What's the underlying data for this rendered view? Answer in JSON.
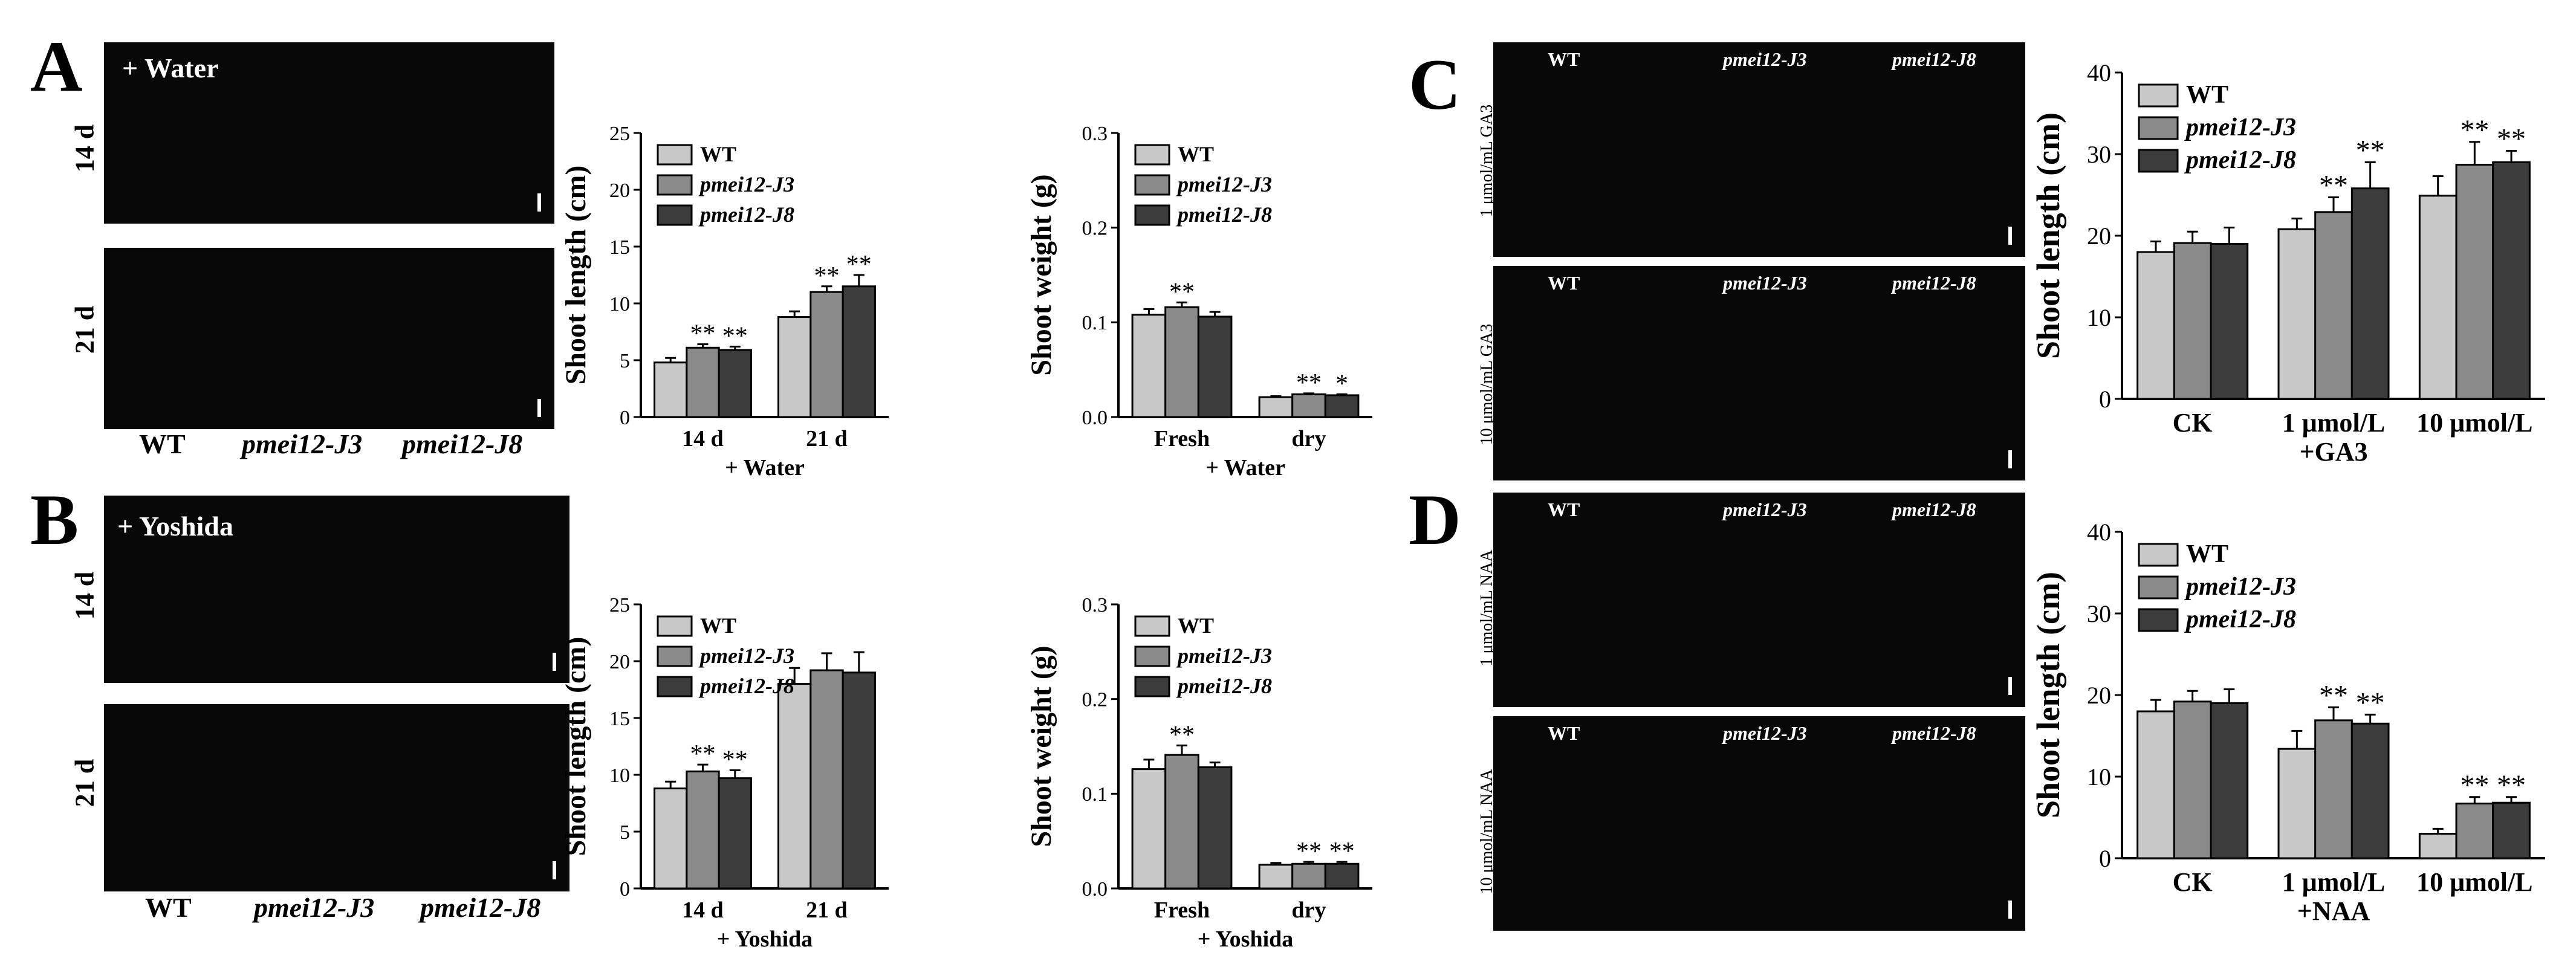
{
  "figure": {
    "labels": {
      "A": "A",
      "B": "B",
      "C": "C",
      "D": "D"
    },
    "photo_tags": {
      "water": "+ Water",
      "yoshida": "+ Yoshida"
    },
    "row_labels": {
      "d14": "14 d",
      "d21": "21 d"
    },
    "genotypes": [
      "WT",
      "pmei12-J3",
      "pmei12-J8"
    ],
    "ga_rows": [
      "1 μmol/mL GA3",
      "10 μmol/mL GA3"
    ],
    "naa_rows": [
      "1 μmol/mL NAA",
      "10 μmol/mL NAA"
    ]
  },
  "colors": {
    "WT": "#c8c8c8",
    "pmei12-J3": "#8a8a8a",
    "pmei12-J8": "#3c3c3c"
  },
  "chart_data": [
    {
      "id": "A-length",
      "type": "bar",
      "categories": [
        "14 d",
        "21 d"
      ],
      "series": [
        {
          "name": "WT",
          "values": [
            4.8,
            8.8
          ],
          "err": [
            0.4,
            0.5
          ],
          "sig": [
            "",
            ""
          ]
        },
        {
          "name": "pmei12-J3",
          "values": [
            6.1,
            11.0
          ],
          "err": [
            0.3,
            0.5
          ],
          "sig": [
            "**",
            "**"
          ]
        },
        {
          "name": "pmei12-J8",
          "values": [
            5.9,
            11.5
          ],
          "err": [
            0.3,
            1.0
          ],
          "sig": [
            "**",
            "**"
          ]
        }
      ],
      "ylabel": "Shoot length (cm)",
      "xlabel": "+ Water",
      "ylim": [
        0,
        25
      ],
      "yticks": [
        0,
        5,
        10,
        15,
        20,
        25
      ],
      "legend": "top-left"
    },
    {
      "id": "A-weight",
      "type": "bar",
      "categories": [
        "Fresh",
        "dry"
      ],
      "series": [
        {
          "name": "WT",
          "values": [
            0.108,
            0.021
          ],
          "err": [
            0.006,
            0.001
          ],
          "sig": [
            "",
            ""
          ]
        },
        {
          "name": "pmei12-J3",
          "values": [
            0.116,
            0.024
          ],
          "err": [
            0.005,
            0.001
          ],
          "sig": [
            "**",
            "**"
          ]
        },
        {
          "name": "pmei12-J8",
          "values": [
            0.106,
            0.023
          ],
          "err": [
            0.005,
            0.001
          ],
          "sig": [
            "",
            "*"
          ]
        }
      ],
      "ylabel": "Shoot weight (g)",
      "xlabel": "+ Water",
      "ylim": [
        0,
        0.3
      ],
      "yticks": [
        0.0,
        0.1,
        0.2,
        0.3
      ],
      "legend": "top-left"
    },
    {
      "id": "B-length",
      "type": "bar",
      "categories": [
        "14 d",
        "21 d"
      ],
      "series": [
        {
          "name": "WT",
          "values": [
            8.8,
            18.0
          ],
          "err": [
            0.6,
            1.4
          ],
          "sig": [
            "",
            ""
          ]
        },
        {
          "name": "pmei12-J3",
          "values": [
            10.3,
            19.2
          ],
          "err": [
            0.6,
            1.5
          ],
          "sig": [
            "**",
            ""
          ]
        },
        {
          "name": "pmei12-J8",
          "values": [
            9.7,
            19.0
          ],
          "err": [
            0.7,
            1.8
          ],
          "sig": [
            "**",
            ""
          ]
        }
      ],
      "ylabel": "Shoot length (cm)",
      "xlabel": "+ Yoshida",
      "ylim": [
        0,
        25
      ],
      "yticks": [
        0,
        5,
        10,
        15,
        20,
        25
      ],
      "legend": "top-left"
    },
    {
      "id": "B-weight",
      "type": "bar",
      "categories": [
        "Fresh",
        "dry"
      ],
      "series": [
        {
          "name": "WT",
          "values": [
            0.126,
            0.025
          ],
          "err": [
            0.01,
            0.002
          ],
          "sig": [
            "",
            ""
          ]
        },
        {
          "name": "pmei12-J3",
          "values": [
            0.141,
            0.026
          ],
          "err": [
            0.01,
            0.002
          ],
          "sig": [
            "**",
            "**"
          ]
        },
        {
          "name": "pmei12-J8",
          "values": [
            0.128,
            0.026
          ],
          "err": [
            0.005,
            0.002
          ],
          "sig": [
            "",
            "**"
          ]
        }
      ],
      "ylabel": "Shoot weight (g)",
      "xlabel": "+ Yoshida",
      "ylim": [
        0,
        0.3
      ],
      "yticks": [
        0.0,
        0.1,
        0.2,
        0.3
      ],
      "legend": "top-left"
    },
    {
      "id": "C-length",
      "type": "bar",
      "categories": [
        "CK",
        "1 μmol/L +GA3",
        "10 μmol/L"
      ],
      "series": [
        {
          "name": "WT",
          "values": [
            18.0,
            20.8,
            24.9
          ],
          "err": [
            1.3,
            1.3,
            2.4
          ],
          "sig": [
            "",
            "",
            ""
          ]
        },
        {
          "name": "pmei12-J3",
          "values": [
            19.1,
            22.9,
            28.7
          ],
          "err": [
            1.4,
            1.8,
            2.8
          ],
          "sig": [
            "",
            "**",
            "**"
          ]
        },
        {
          "name": "pmei12-J8",
          "values": [
            19.0,
            25.8,
            29.0
          ],
          "err": [
            2.0,
            3.2,
            1.4
          ],
          "sig": [
            "",
            "**",
            "**"
          ]
        }
      ],
      "ylabel": "Shoot length (cm)",
      "ylim": [
        0,
        40
      ],
      "yticks": [
        0,
        10,
        20,
        30,
        40
      ],
      "legend": "top-left"
    },
    {
      "id": "D-length",
      "type": "bar",
      "categories": [
        "CK",
        "1 μmol/L +NAA",
        "10 μmol/L"
      ],
      "series": [
        {
          "name": "WT",
          "values": [
            18.0,
            13.4,
            3.0
          ],
          "err": [
            1.4,
            2.2,
            0.6
          ],
          "sig": [
            "",
            "",
            ""
          ]
        },
        {
          "name": "pmei12-J3",
          "values": [
            19.2,
            16.9,
            6.7
          ],
          "err": [
            1.3,
            1.6,
            0.8
          ],
          "sig": [
            "",
            "**",
            "**"
          ]
        },
        {
          "name": "pmei12-J8",
          "values": [
            19.0,
            16.5,
            6.8
          ],
          "err": [
            1.7,
            1.1,
            0.7
          ],
          "sig": [
            "",
            "**",
            "**"
          ]
        }
      ],
      "ylabel": "Shoot length (cm)",
      "ylim": [
        0,
        40
      ],
      "yticks": [
        0,
        10,
        20,
        30,
        40
      ],
      "legend": "top-left"
    }
  ]
}
